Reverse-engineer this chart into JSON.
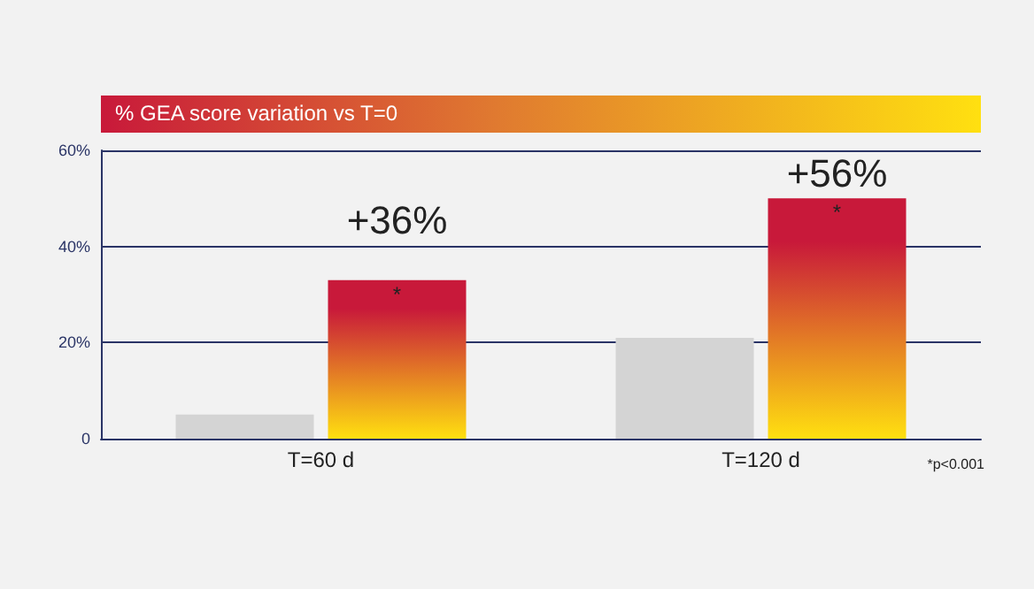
{
  "chart_data": {
    "type": "bar",
    "title": "% GEA score variation vs T=0",
    "categories": [
      "T=60 d",
      "T=120 d"
    ],
    "series": [
      {
        "color": "#d4d4d4",
        "values": [
          5,
          21
        ]
      },
      {
        "color": "#c8193a",
        "values": [
          33,
          50
        ]
      }
    ],
    "ylim": [
      0,
      60
    ],
    "yticks": [
      0,
      {
        "value": 20,
        "label": "20%"
      },
      {
        "value": 40,
        "label": "40%"
      },
      {
        "value": 60,
        "label": "60%"
      }
    ],
    "grid": "y",
    "annotations": [
      "+36%",
      "+56%",
      "*",
      "*",
      "*p<0.001"
    ]
  }
}
